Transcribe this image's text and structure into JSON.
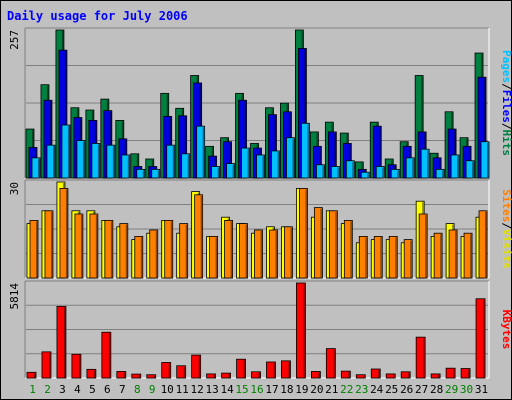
{
  "chart_data": [
    {
      "type": "bar",
      "title": "Daily usage for July 2006",
      "categories": [
        "1",
        "2",
        "3",
        "4",
        "5",
        "6",
        "7",
        "8",
        "9",
        "10",
        "11",
        "12",
        "13",
        "14",
        "15",
        "16",
        "17",
        "18",
        "19",
        "20",
        "21",
        "22",
        "23",
        "24",
        "25",
        "26",
        "27",
        "28",
        "29",
        "30",
        "31"
      ],
      "weekend_days": [
        "1",
        "2",
        "8",
        "9",
        "15",
        "16",
        "22",
        "23",
        "29",
        "30"
      ],
      "panel": "top",
      "ymax_label": "257",
      "right_label": [
        "Pages",
        "/",
        "Files",
        "/",
        "Hits"
      ],
      "ylim": [
        0,
        257
      ],
      "series": [
        {
          "name": "Hits",
          "color": "#008040",
          "values": [
            85,
            162,
            257,
            122,
            118,
            137,
            100,
            42,
            33,
            147,
            121,
            178,
            55,
            70,
            147,
            60,
            122,
            130,
            257,
            80,
            97,
            78,
            28,
            97,
            33,
            63,
            178,
            43,
            115,
            70,
            217
          ]
        },
        {
          "name": "Files",
          "color": "#0000e0",
          "values": [
            53,
            135,
            222,
            105,
            100,
            117,
            68,
            20,
            20,
            107,
            108,
            165,
            38,
            63,
            135,
            52,
            110,
            115,
            225,
            55,
            80,
            60,
            15,
            90,
            23,
            55,
            80,
            35,
            85,
            55,
            175
          ]
        },
        {
          "name": "Pages",
          "color": "#00c0ff",
          "values": [
            35,
            57,
            92,
            65,
            60,
            57,
            40,
            15,
            15,
            57,
            42,
            90,
            20,
            25,
            52,
            40,
            47,
            70,
            95,
            23,
            20,
            30,
            10,
            20,
            15,
            35,
            50,
            15,
            40,
            30,
            63
          ]
        }
      ]
    },
    {
      "type": "bar",
      "panel": "middle",
      "ymax_label": "30",
      "right_label": [
        "Sites",
        "/",
        "Visits"
      ],
      "ylim": [
        0,
        30
      ],
      "series": [
        {
          "name": "Visits",
          "color": "#ffff00",
          "values": [
            17,
            21,
            30,
            21,
            21,
            18,
            16,
            12,
            14,
            18,
            14,
            27,
            13,
            19,
            17,
            14,
            16,
            16,
            28,
            19,
            21,
            17,
            11,
            12,
            12,
            11,
            24,
            13,
            17,
            13,
            19
          ]
        },
        {
          "name": "Sites",
          "color": "#ff8000",
          "values": [
            18,
            21,
            28,
            20,
            20,
            18,
            17,
            13,
            15,
            18,
            17,
            26,
            13,
            18,
            17,
            15,
            15,
            16,
            28,
            22,
            21,
            18,
            13,
            13,
            13,
            12,
            20,
            14,
            15,
            14,
            21
          ]
        }
      ]
    },
    {
      "type": "bar",
      "panel": "bottom",
      "ymax_label": "5814",
      "right_label": [
        "KBytes"
      ],
      "ylim": [
        0,
        5814
      ],
      "series": [
        {
          "name": "KBytes",
          "color": "#ff0000",
          "values": [
            350,
            1600,
            4380,
            1450,
            530,
            2800,
            400,
            240,
            200,
            950,
            750,
            1400,
            250,
            300,
            1150,
            380,
            980,
            1050,
            5814,
            400,
            1800,
            420,
            200,
            550,
            250,
            380,
            2500,
            250,
            600,
            580,
            4850
          ]
        }
      ]
    }
  ]
}
